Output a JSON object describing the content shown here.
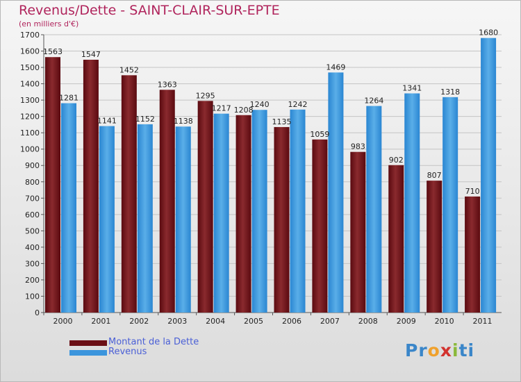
{
  "colors": {
    "dette": "#6b0f15",
    "revenus": "#2f8fd8",
    "title": "#b0245c",
    "legend_text": "#4a5fd6"
  },
  "chart_data": {
    "type": "bar",
    "title": "Revenus/Dette - SAINT-CLAIR-SUR-EPTE",
    "subtitle": "(en milliers d'€)",
    "categories": [
      "2000",
      "2001",
      "2002",
      "2003",
      "2004",
      "2005",
      "2006",
      "2007",
      "2008",
      "2009",
      "2010",
      "2011"
    ],
    "series": [
      {
        "name": "Montant de la Dette",
        "values": [
          1563,
          1547,
          1452,
          1363,
          1295,
          1208,
          1135,
          1059,
          983,
          902,
          807,
          710
        ]
      },
      {
        "name": "Revenus",
        "values": [
          1281,
          1141,
          1152,
          1138,
          1217,
          1240,
          1242,
          1469,
          1264,
          1341,
          1318,
          1680
        ]
      }
    ],
    "ylim": [
      0,
      1700
    ],
    "yticks": [
      0,
      100,
      200,
      300,
      400,
      500,
      600,
      700,
      800,
      900,
      1000,
      1100,
      1200,
      1300,
      1400,
      1500,
      1600,
      1700
    ],
    "grid": true,
    "legend_position": "bottom-left"
  },
  "logo": {
    "letters": [
      {
        "ch": "P",
        "color": "#3a86c9"
      },
      {
        "ch": "r",
        "color": "#3a86c9"
      },
      {
        "ch": "o",
        "color": "#f0a12c"
      },
      {
        "ch": "x",
        "color": "#d2322e"
      },
      {
        "ch": "i",
        "color": "#8ab93a"
      },
      {
        "ch": "t",
        "color": "#3a86c9"
      },
      {
        "ch": "i",
        "color": "#3a86c9"
      }
    ]
  }
}
